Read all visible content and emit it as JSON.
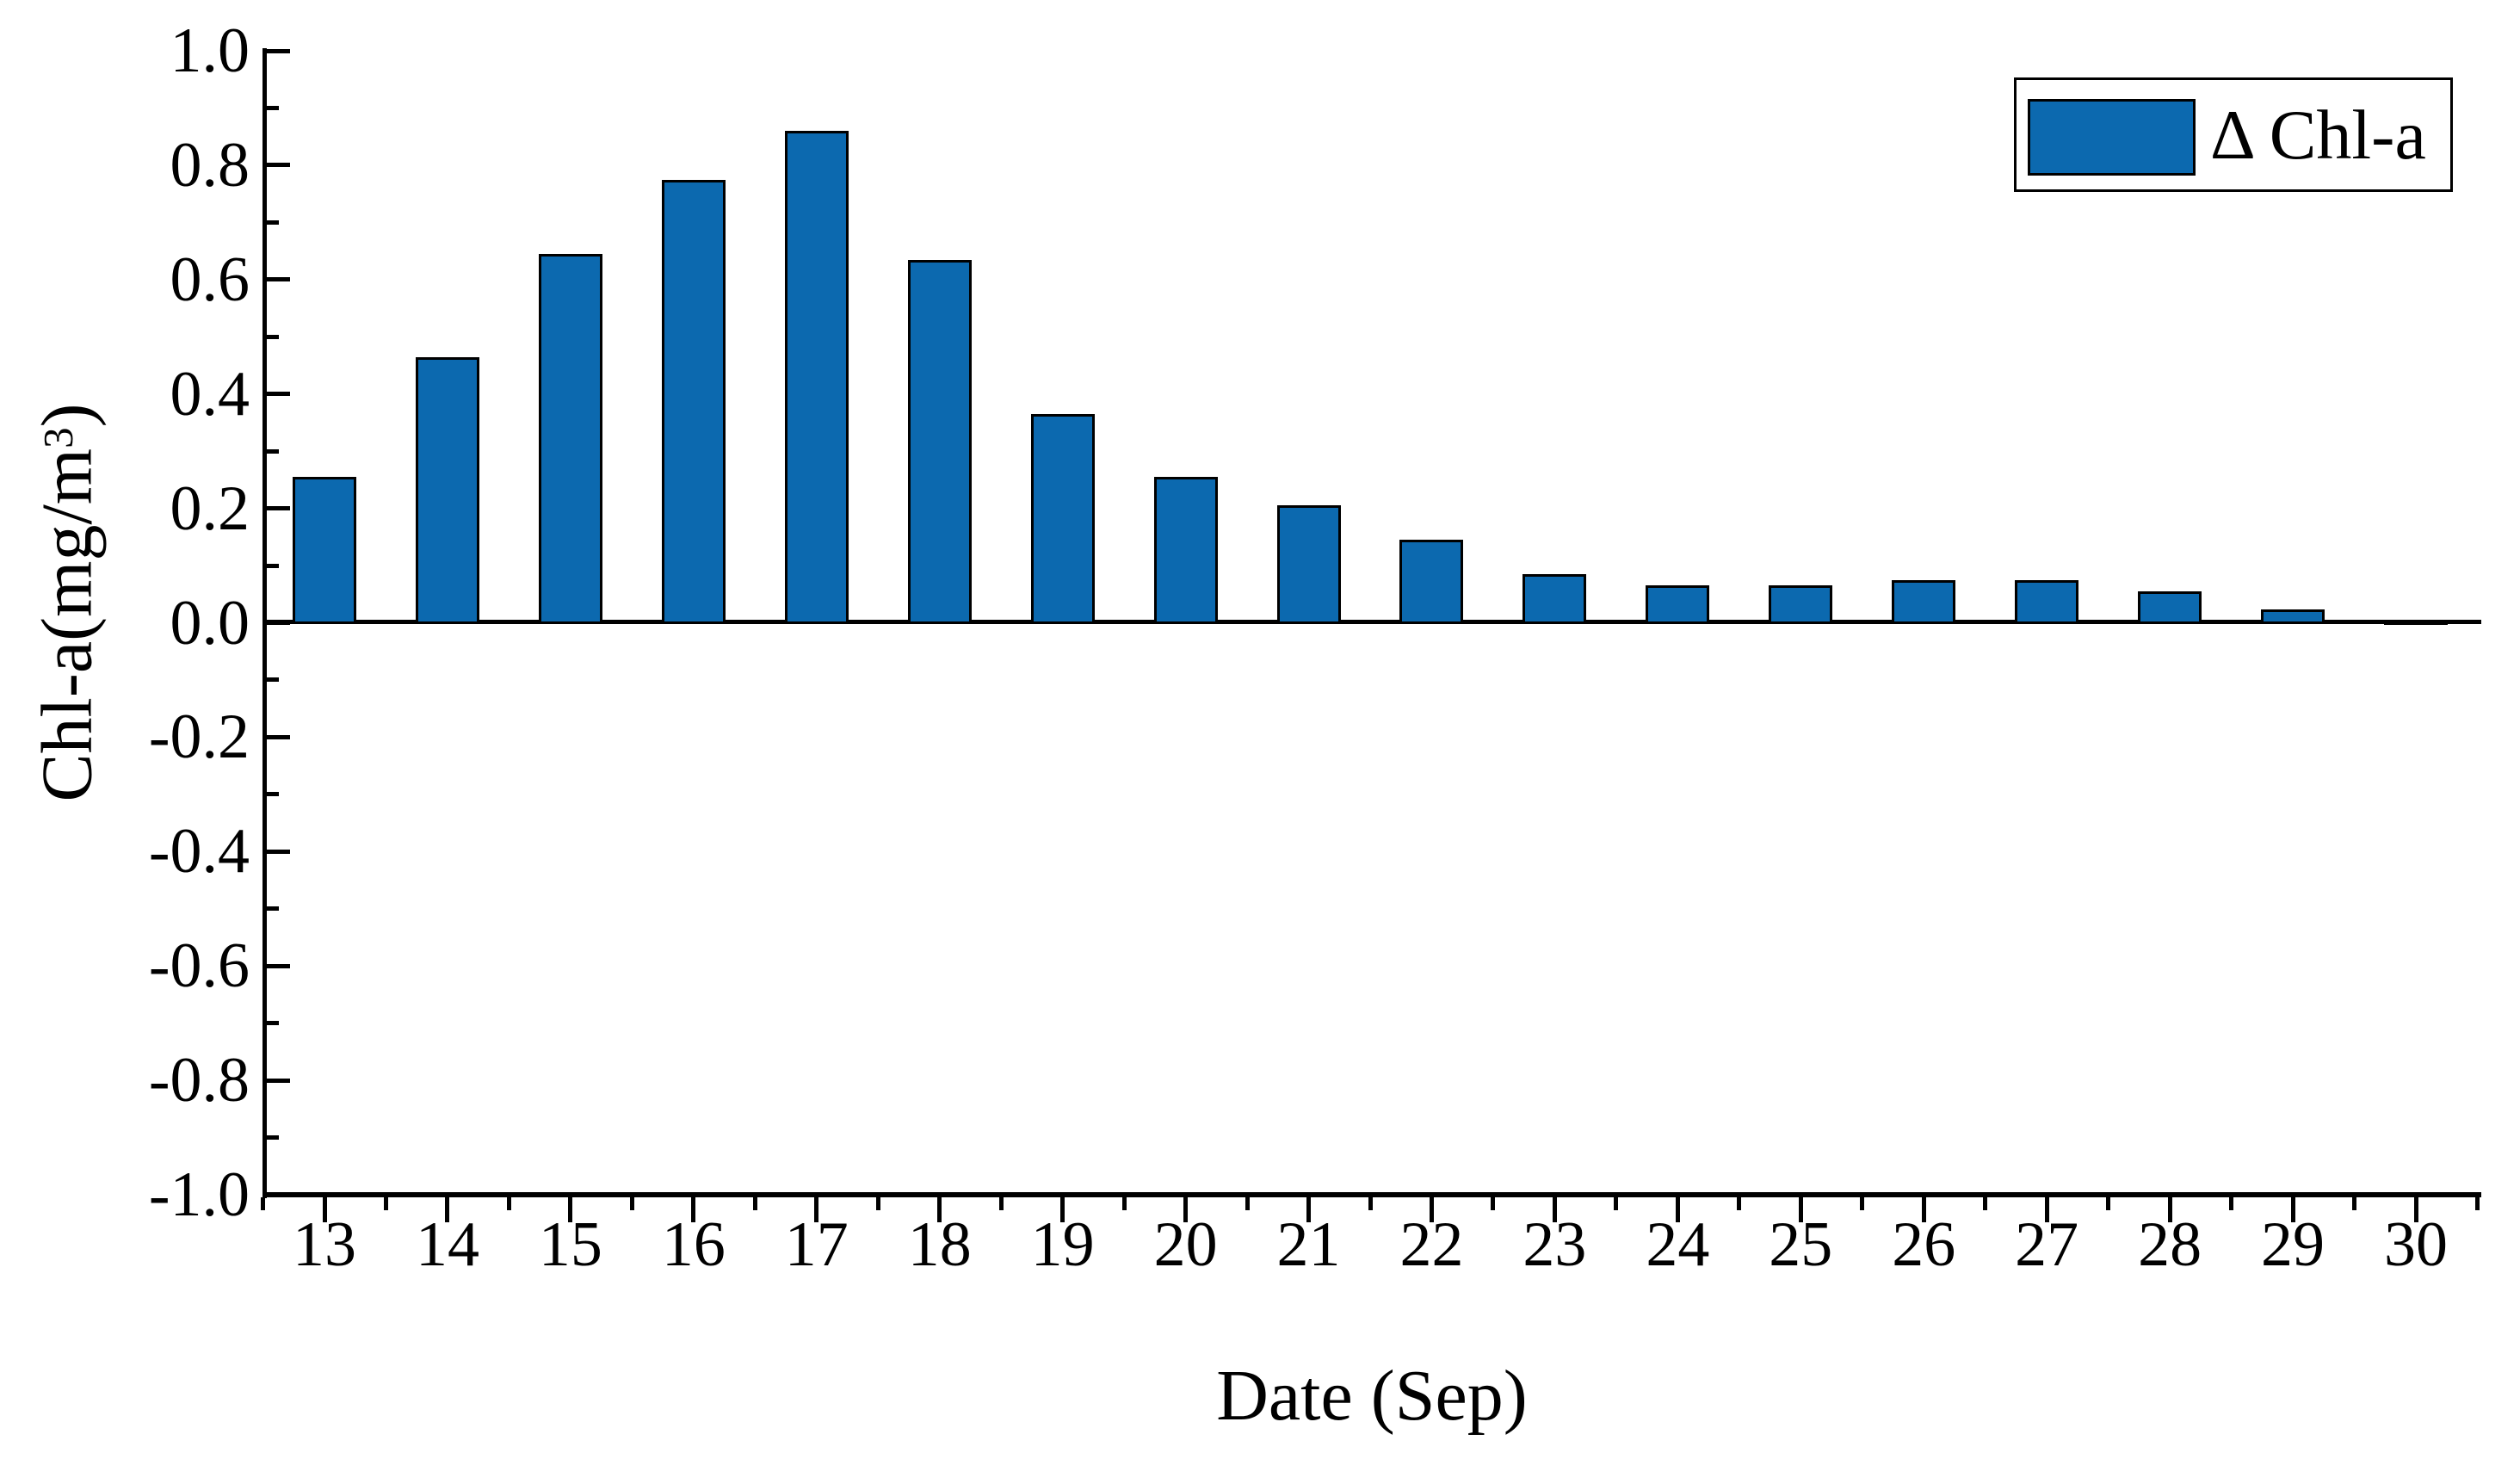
{
  "figure": {
    "legend": {
      "label": "Δ Chl-a",
      "swatch_color": "#0c69af",
      "border_color": "#000000",
      "position": "top-right"
    },
    "x_axis": {
      "title": "Date (Sep)",
      "tick_labels": [
        "13",
        "14",
        "15",
        "16",
        "17",
        "18",
        "19",
        "20",
        "21",
        "22",
        "23",
        "24",
        "25",
        "26",
        "27",
        "28",
        "29",
        "30"
      ]
    },
    "y_axis": {
      "title_prefix": "Chl-a(mg/m",
      "title_sup": "3",
      "title_suffix": ")",
      "tick_labels": [
        "1.0",
        "0.8",
        "0.6",
        "0.4",
        "0.2",
        "0.0",
        "-0.2",
        "-0.4",
        "-0.6",
        "-0.8",
        "-1.0"
      ]
    }
  },
  "chart_data": {
    "type": "bar",
    "title": "",
    "xlabel": "Date (Sep)",
    "ylabel": "Chl-a(mg/m^3)",
    "series_name": "Δ Chl-a",
    "categories": [
      13,
      14,
      15,
      16,
      17,
      18,
      19,
      20,
      21,
      22,
      23,
      24,
      25,
      26,
      27,
      28,
      29,
      30
    ],
    "values": [
      0.255,
      0.465,
      0.645,
      0.775,
      0.86,
      0.635,
      0.365,
      0.255,
      0.205,
      0.145,
      0.085,
      0.065,
      0.065,
      0.075,
      0.075,
      0.055,
      0.023,
      0.005
    ],
    "ylim": [
      -1.0,
      1.0
    ],
    "y_major_step": 0.2,
    "y_minor_step": 0.1,
    "x_minor_step": 0.5,
    "bar_color": "#0c69af",
    "bar_edge_color": "#000000",
    "grid": false,
    "baseline": 0.0,
    "legend_position": "top-right"
  }
}
